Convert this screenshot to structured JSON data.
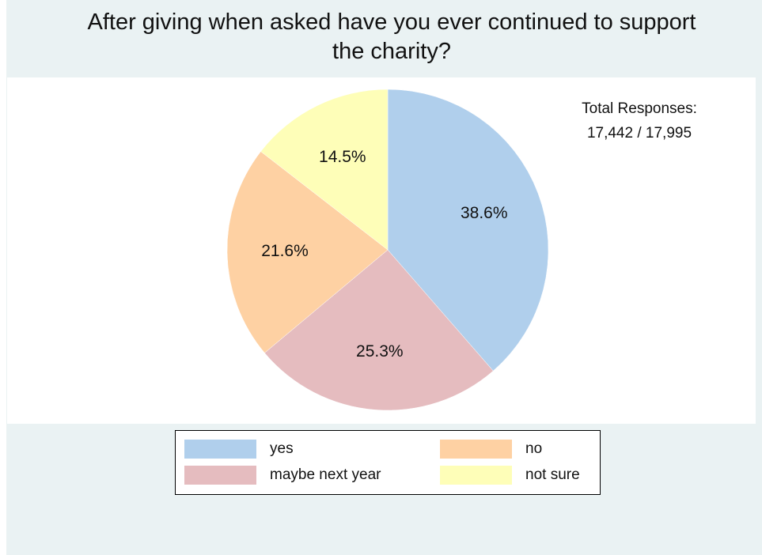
{
  "chart_data": {
    "type": "pie",
    "title": "After giving when asked have you ever continued to support the charity?",
    "note_lines": [
      "Total Responses:",
      "17,442 / 17,995"
    ],
    "categories": [
      "yes",
      "maybe next year",
      "no",
      "not sure"
    ],
    "values": [
      38.6,
      25.3,
      21.6,
      14.5
    ],
    "labels": [
      "38.6%",
      "25.3%",
      "21.6%",
      "14.5%"
    ],
    "colors": [
      "#b0cfec",
      "#e5bcbf",
      "#fed1a3",
      "#fefeb8"
    ],
    "start_angle": "12 o'clock",
    "direction": "clockwise",
    "legend_placement": "bottom",
    "legend": [
      {
        "label": "yes",
        "color": "#b0cfec"
      },
      {
        "label": "no",
        "color": "#fed1a3"
      },
      {
        "label": "maybe next year",
        "color": "#e5bcbf"
      },
      {
        "label": "not sure",
        "color": "#fefeb8"
      }
    ]
  }
}
